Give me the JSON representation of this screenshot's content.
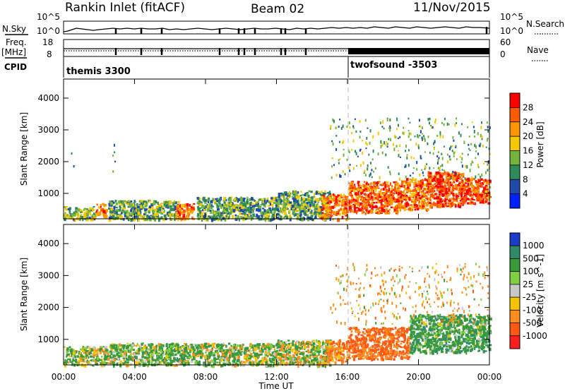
{
  "header": {
    "title": "Rankin Inlet (fitACF)",
    "beam": "Beam 02",
    "date": "11/Nov/2015"
  },
  "left_labels": {
    "nsky": "N.Sky",
    "nsky_ticks": [
      "10^5",
      "10^0"
    ],
    "freq": "Freq.",
    "freq_unit": "[MHz]",
    "freq_ticks": [
      "18",
      "8"
    ],
    "cpid": "CPID"
  },
  "right_labels": {
    "nsearch": "N.Search",
    "nsearch_ticks": [
      "10^5",
      "10^0"
    ],
    "nave": "Nave",
    "nave_ticks": [
      "60",
      "0"
    ]
  },
  "cpid_segments": [
    {
      "label": "themis 3300",
      "start_hour": 0,
      "end_hour": 16
    },
    {
      "label": "twofsound -3503",
      "start_hour": 16,
      "end_hour": 24
    }
  ],
  "axes": {
    "xlabel": "Time UT",
    "ylabel": "Slant Range [km]",
    "x_ticks": [
      "00:00",
      "04:00",
      "08:00",
      "12:00",
      "16:00",
      "20:00",
      "00:00"
    ],
    "y_ticks": [
      "1000",
      "2000",
      "3000",
      "4000"
    ]
  },
  "colorbars": {
    "power": {
      "label": "Power [dB]",
      "ticks": [
        "28",
        "24",
        "20",
        "16",
        "12",
        "8",
        "4"
      ],
      "colors": [
        "#ff0000",
        "#ff5a00",
        "#ff9600",
        "#f5c800",
        "#73b43c",
        "#2f8a5a",
        "#1f4aa8",
        "#0020ff"
      ]
    },
    "velocity": {
      "label": "Velocity [m s^-1]",
      "ticks": [
        "1000",
        "500",
        "100",
        "25",
        "-25",
        "-100",
        "-500",
        "-1000"
      ],
      "colors": [
        "#1a3cc8",
        "#2f8a6a",
        "#3a9a3a",
        "#7fd040",
        "#c8c8c8",
        "#f5c400",
        "#ff8c1e",
        "#ff5a14",
        "#ff1e1e"
      ]
    }
  },
  "chart_data": [
    {
      "type": "heatmap",
      "name": "power",
      "xlabel": "Time UT",
      "ylabel": "Slant Range [km]",
      "xlim": [
        0,
        24
      ],
      "ylim": [
        200,
        4600
      ],
      "zlabel": "Power [dB]",
      "zlim": [
        0,
        32
      ],
      "regions": [
        {
          "t": [
            0,
            1.8
          ],
          "r": [
            200,
            600
          ],
          "p": 14
        },
        {
          "t": [
            1.8,
            2.4
          ],
          "r": [
            300,
            700
          ],
          "p": 24
        },
        {
          "t": [
            0.3,
            0.6
          ],
          "r": [
            1800,
            2300
          ],
          "p": 12
        },
        {
          "t": [
            2.7,
            3.0
          ],
          "r": [
            1700,
            2600
          ],
          "p": 10
        },
        {
          "t": [
            2.5,
            6.5
          ],
          "r": [
            200,
            800
          ],
          "p": 12
        },
        {
          "t": [
            6.3,
            7.3
          ],
          "r": [
            200,
            700
          ],
          "p": 24
        },
        {
          "t": [
            7.5,
            12
          ],
          "r": [
            200,
            900
          ],
          "p": 12
        },
        {
          "t": [
            12,
            15
          ],
          "r": [
            200,
            1100
          ],
          "p": 12
        },
        {
          "t": [
            14.5,
            16
          ],
          "r": [
            200,
            1000
          ],
          "p": 24
        },
        {
          "t": [
            16,
            19
          ],
          "r": [
            400,
            1400
          ],
          "p": 26
        },
        {
          "t": [
            19,
            20.5
          ],
          "r": [
            500,
            1500
          ],
          "p": 24
        },
        {
          "t": [
            20.5,
            22.5
          ],
          "r": [
            600,
            1700
          ],
          "p": 27
        },
        {
          "t": [
            22.5,
            24
          ],
          "r": [
            700,
            1500
          ],
          "p": 26
        },
        {
          "t": [
            15,
            24
          ],
          "r": [
            1500,
            3400
          ],
          "p": 12
        }
      ]
    },
    {
      "type": "heatmap",
      "name": "velocity",
      "xlabel": "Time UT",
      "ylabel": "Slant Range [km]",
      "xlim": [
        0,
        24
      ],
      "ylim": [
        200,
        4600
      ],
      "zlabel": "Velocity [m s^-1]",
      "zlim": [
        -1000,
        1000
      ],
      "regions": [
        {
          "t": [
            0,
            2.5
          ],
          "r": [
            200,
            800
          ],
          "v": 100
        },
        {
          "t": [
            2.5,
            7
          ],
          "r": [
            200,
            900
          ],
          "v": 200
        },
        {
          "t": [
            7,
            12
          ],
          "r": [
            200,
            900
          ],
          "v": 150
        },
        {
          "t": [
            12,
            15
          ],
          "r": [
            200,
            1000
          ],
          "v": 50
        },
        {
          "t": [
            14.8,
            16
          ],
          "r": [
            300,
            1000
          ],
          "v": -400
        },
        {
          "t": [
            16,
            19.5
          ],
          "r": [
            400,
            1400
          ],
          "v": -600
        },
        {
          "t": [
            19.5,
            24
          ],
          "r": [
            600,
            1800
          ],
          "v": 300
        },
        {
          "t": [
            15,
            24
          ],
          "r": [
            1500,
            3400
          ],
          "v": -200
        }
      ]
    }
  ]
}
